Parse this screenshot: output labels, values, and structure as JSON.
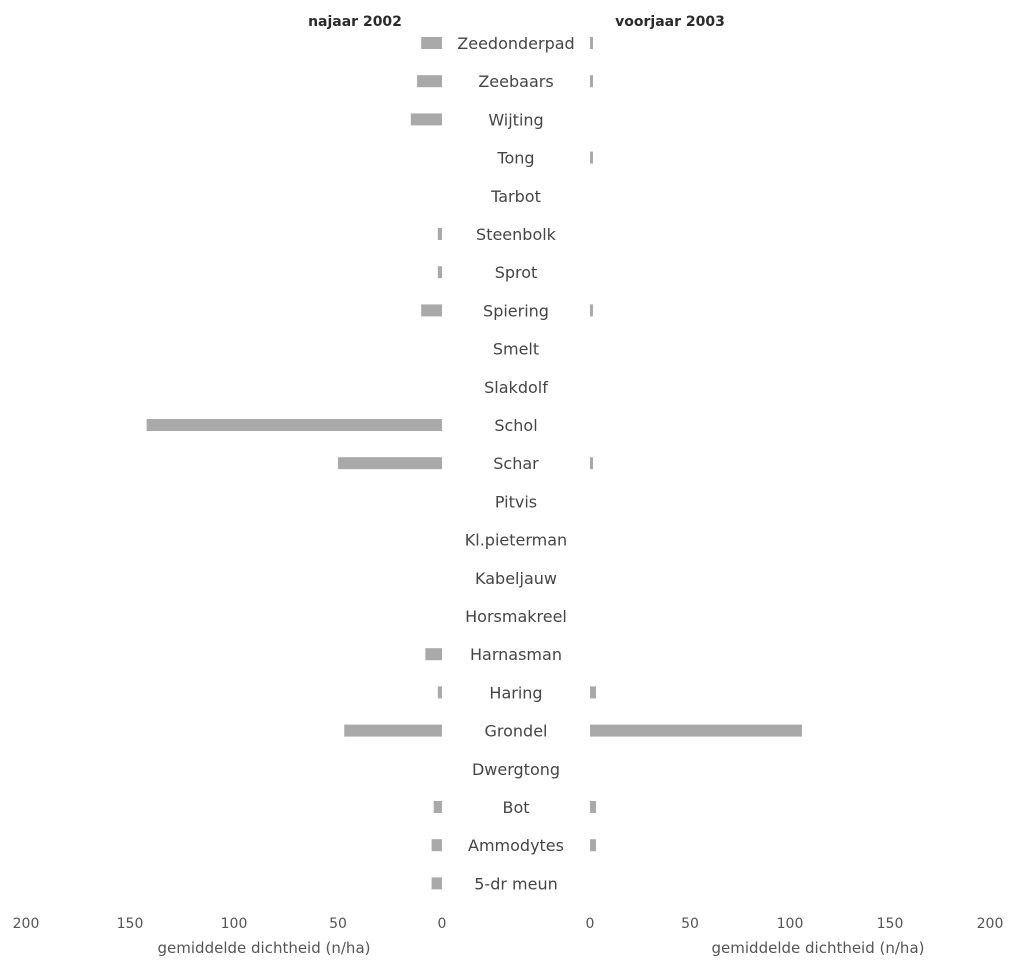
{
  "chart_data": {
    "type": "bar",
    "orientation": "horizontal",
    "layout": "back-to-back",
    "categories": [
      "Zeedonderpad",
      "Zeebaars",
      "Wijting",
      "Tong",
      "Tarbot",
      "Steenbolk",
      "Sprot",
      "Spiering",
      "Smelt",
      "Slakdolf",
      "Schol",
      "Schar",
      "Pitvis",
      "Kl.pieterman",
      "Kabeljauw",
      "Horsmakreel",
      "Harnasman",
      "Haring",
      "Grondel",
      "Dwergtong",
      "Bot",
      "Ammodytes",
      "5-dr meun"
    ],
    "series": [
      {
        "name": "najaar 2002",
        "side": "left",
        "values": [
          10,
          12,
          15,
          0,
          0,
          2,
          2,
          10,
          0,
          0,
          142,
          50,
          0,
          0,
          0,
          0,
          8,
          2,
          47,
          0,
          4,
          5,
          5
        ],
        "xlabel": "gemiddelde dichtheid (n/ha)",
        "xlim": [
          200,
          0
        ],
        "ticks": [
          "200",
          "150",
          "100",
          "50",
          "0"
        ]
      },
      {
        "name": "voorjaar 2003",
        "side": "right",
        "values": [
          1,
          1,
          0,
          1,
          0,
          0,
          0,
          1,
          0,
          0,
          0,
          1,
          0,
          0,
          0,
          0,
          0,
          3,
          106,
          0,
          3,
          3,
          0
        ],
        "xlabel": "gemiddelde dichtheid (n/ha)",
        "xlim": [
          0,
          200
        ],
        "ticks": [
          "0",
          "50",
          "100",
          "150",
          "200"
        ]
      }
    ],
    "bar_color": "#a9a9a9",
    "grid": false,
    "legend": "none"
  }
}
